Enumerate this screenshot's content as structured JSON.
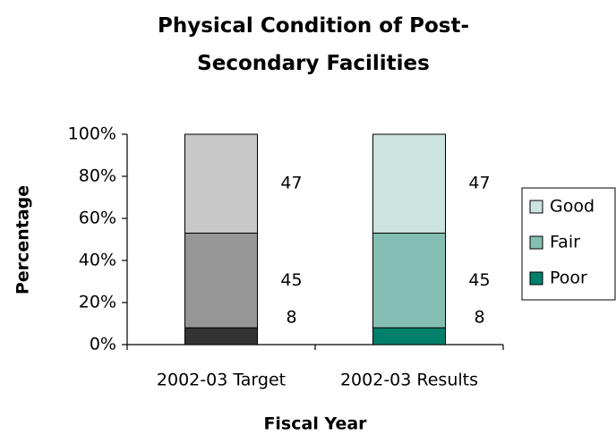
{
  "chart_data": {
    "type": "stacked_bar",
    "title": "Physical Condition of Post-Secondary Facilities",
    "xlabel": "Fiscal Year",
    "ylabel": "Percentage",
    "categories": [
      "2002-03 Target",
      "2002-03 Results"
    ],
    "series": [
      {
        "name": "Poor",
        "color": "#00806b",
        "colors": [
          "#333333",
          "#00806b"
        ],
        "values": [
          8,
          8
        ]
      },
      {
        "name": "Fair",
        "color": "#85bfb3",
        "colors": [
          "#969696",
          "#85bfb3"
        ],
        "values": [
          45,
          45
        ]
      },
      {
        "name": "Good",
        "color": "#cce3df",
        "colors": [
          "#c8c8c8",
          "#cce3df"
        ],
        "values": [
          47,
          47
        ]
      }
    ],
    "ylim": [
      0,
      100
    ],
    "yticks": [
      {
        "value": 0,
        "label": "0%"
      },
      {
        "value": 20,
        "label": "20%"
      },
      {
        "value": 40,
        "label": "40%"
      },
      {
        "value": 60,
        "label": "60%"
      },
      {
        "value": 80,
        "label": "80%"
      },
      {
        "value": 100,
        "label": "100%"
      }
    ],
    "legend": "right",
    "data_labels": true
  }
}
